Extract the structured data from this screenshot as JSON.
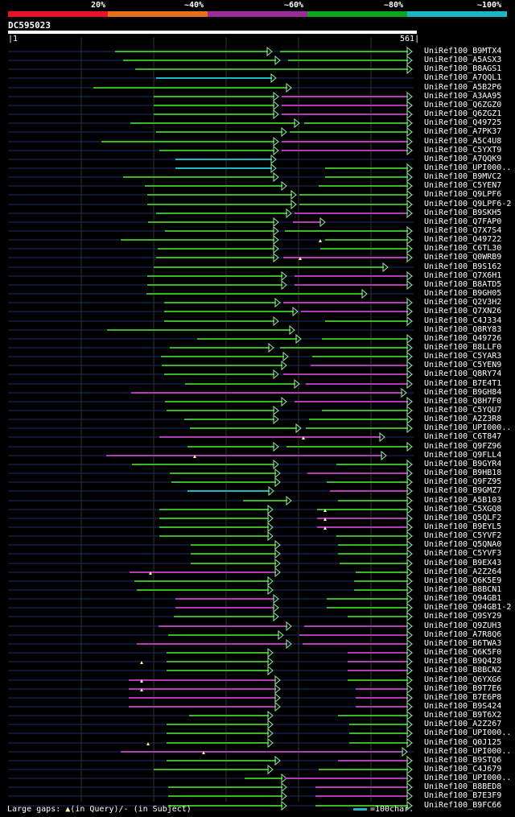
{
  "legend": {
    "segments": [
      {
        "label": "20%",
        "color": "#e8132a"
      },
      {
        "label": "~40%",
        "color": "#e8701a"
      },
      {
        "label": "~60%",
        "color": "#9c2b9b"
      },
      {
        "label": "~80%",
        "color": "#0ea41c"
      },
      {
        "label": "~100%",
        "color": "#19b7c4"
      }
    ]
  },
  "query": {
    "id": "DC595023",
    "start": "1",
    "end": "561"
  },
  "footer": {
    "gaps_label": "Large gaps:",
    "query_gap": "(in Query)/-",
    "subject_gap": "(in Subject)",
    "scale_label": "=100char."
  },
  "hits": [
    "UniRef100_B9MTX4",
    "UniRef100_A5ASX3",
    "UniRef100_B8AGS1",
    "UniRef100_A7QQL1",
    "UniRef100_A5B2P6",
    "UniRef100_A3AA95",
    "UniRef100_Q6ZGZ0",
    "UniRef100_Q6ZGZ1",
    "UniRef100_Q49725",
    "UniRef100_A7PK37",
    "UniRef100_A5C4U8",
    "UniRef100_C5YXT9",
    "UniRef100_A7QQK9",
    "UniRef100_UPI000..",
    "UniRef100_B9MVC2",
    "UniRef100_C5YEN7",
    "UniRef100_Q9LPF6",
    "UniRef100_Q9LPF6-2",
    "UniRef100_B9SKH5",
    "UniRef100_Q7FAP0",
    "UniRef100_Q7X7S4",
    "UniRef100_Q49722",
    "UniRef100_C6TL30",
    "UniRef100_Q0WRB9",
    "UniRef100_B9S162",
    "UniRef100_Q7X6H1",
    "UniRef100_B8ATD5",
    "UniRef100_B9GH05",
    "UniRef100_Q2V3H2",
    "UniRef100_Q7XN26",
    "UniRef100_C4J334",
    "UniRef100_Q8RY83",
    "UniRef100_Q49726",
    "UniRef100_B8LLF0",
    "UniRef100_C5YAR3",
    "UniRef100_C5YEN9",
    "UniRef100_Q8RY74",
    "UniRef100_B7E4T1",
    "UniRef100_B9GH84",
    "UniRef100_Q8H7F0",
    "UniRef100_C5YQU7",
    "UniRef100_A2Z3R8",
    "UniRef100_UPI000..",
    "UniRef100_C6T847",
    "UniRef100_Q9FZ96",
    "UniRef100_Q9FLL4",
    "UniRef100_B9GYR4",
    "UniRef100_B9HB18",
    "UniRef100_Q9FZ95",
    "UniRef100_B9GMZ7",
    "UniRef100_A5B103",
    "UniRef100_C5XGQ8",
    "UniRef100_Q5QLF2",
    "UniRef100_B9EYL5",
    "UniRef100_C5YVF2",
    "UniRef100_Q5QNA0",
    "UniRef100_C5YVF3",
    "UniRef100_B9EX43",
    "UniRef100_A2Z264",
    "UniRef100_Q6K5E9",
    "UniRef100_B8BCN1",
    "UniRef100_Q94GB1",
    "UniRef100_Q94GB1-2",
    "UniRef100_Q9SY29",
    "UniRef100_Q9ZUH3",
    "UniRef100_A7R8Q6",
    "UniRef100_B6TWA3",
    "UniRef100_Q6K5F0",
    "UniRef100_B9Q428",
    "UniRef100_B8BCN2",
    "UniRef100_Q6YXG6",
    "UniRef100_B9T7E6",
    "UniRef100_B7E6P8",
    "UniRef100_B9S424",
    "UniRef100_B9T6X2",
    "UniRef100_A2Z267",
    "UniRef100_UPI000..",
    "UniRef100_Q0J125",
    "UniRef100_UPI000..",
    "UniRef100_B9STQ6",
    "UniRef100_C4J679",
    "UniRef100_UPI000..",
    "UniRef100_B8BED8",
    "UniRef100_B7E3F9",
    "UniRef100_B9FC66"
  ]
}
